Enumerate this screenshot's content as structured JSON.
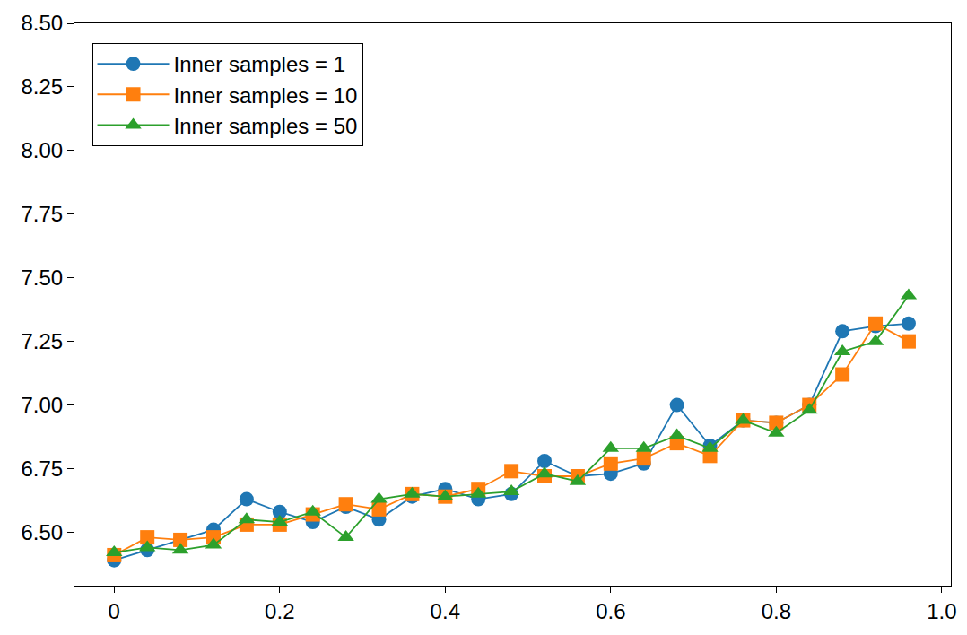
{
  "chart_data": {
    "type": "line",
    "x": [
      0,
      0.04,
      0.08,
      0.12,
      0.16,
      0.2,
      0.24,
      0.28,
      0.32,
      0.36,
      0.4,
      0.44,
      0.48,
      0.52,
      0.56,
      0.6,
      0.64,
      0.68,
      0.72,
      0.76,
      0.8,
      0.84,
      0.88,
      0.92,
      0.96
    ],
    "series": [
      {
        "name": "Inner samples = 1",
        "color": "#1f77b4",
        "marker": "circle",
        "line_style": "solid",
        "values": [
          6.39,
          6.43,
          6.47,
          6.51,
          6.63,
          6.58,
          6.54,
          6.6,
          6.55,
          6.64,
          6.67,
          6.63,
          6.65,
          6.78,
          6.72,
          6.73,
          6.77,
          7.0,
          6.84,
          6.94,
          6.93,
          7.0,
          7.29,
          7.31,
          7.32
        ]
      },
      {
        "name": "Inner samples = 10",
        "color": "#ff7f0e",
        "marker": "square",
        "line_style": "solid",
        "values": [
          6.41,
          6.48,
          6.47,
          6.48,
          6.53,
          6.53,
          6.57,
          6.61,
          6.59,
          6.65,
          6.64,
          6.67,
          6.74,
          6.72,
          6.72,
          6.77,
          6.79,
          6.85,
          6.8,
          6.94,
          6.93,
          7.0,
          7.12,
          7.32,
          7.25
        ]
      },
      {
        "name": "Inner samples = 50",
        "color": "#2ca02c",
        "marker": "triangle-up",
        "line_style": "solid",
        "values": [
          6.42,
          6.44,
          6.43,
          6.45,
          6.55,
          6.54,
          6.58,
          6.48,
          6.63,
          6.65,
          6.64,
          6.65,
          6.66,
          6.73,
          6.7,
          6.83,
          6.83,
          6.88,
          6.83,
          6.94,
          6.89,
          6.98,
          7.21,
          7.25,
          7.43
        ]
      }
    ],
    "xlim": [
      -0.048,
      1.011
    ],
    "xticks": [
      0,
      0.2,
      0.4,
      0.6,
      0.8,
      {
        "value": 1,
        "label": "1.0"
      }
    ],
    "ylim": [
      6.29,
      8.5
    ],
    "yticks": [
      {
        "value": 6.5,
        "label": "6.50"
      },
      {
        "value": 6.75,
        "label": "6.75"
      },
      {
        "value": 7,
        "label": "7.00"
      },
      {
        "value": 7.25,
        "label": "7.25"
      },
      {
        "value": 7.5,
        "label": "7.50"
      },
      {
        "value": 7.75,
        "label": "7.75"
      },
      {
        "value": 8,
        "label": "8.00"
      },
      {
        "value": 8.25,
        "label": "8.25"
      },
      {
        "value": 8.5,
        "label": "8.50"
      }
    ],
    "grid": false,
    "legend": "upper left"
  }
}
